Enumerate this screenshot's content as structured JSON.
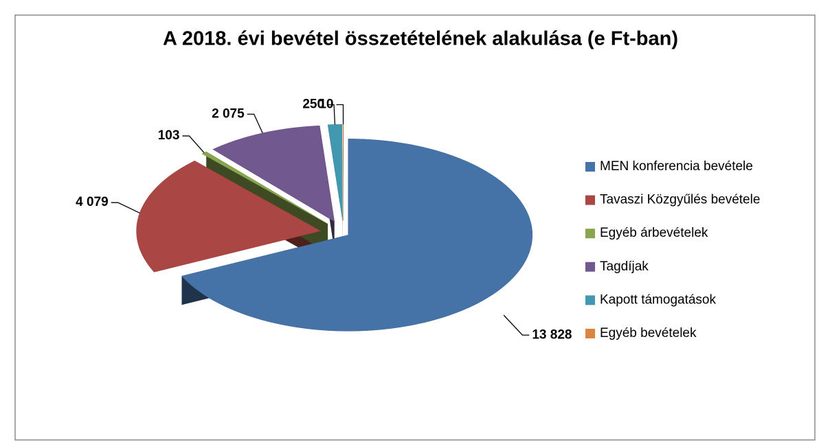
{
  "chart_data": {
    "type": "pie",
    "title": "A 2018. évi bevétel összetételének alakulása (e Ft-ban)",
    "categories": [
      "MEN konferencia bevétele",
      "Tavaszi Közgyűlés bevétele",
      "Egyéb árbevételek",
      "Tagdíjak",
      "Kapott támogatások",
      "Egyéb bevételek"
    ],
    "values": [
      13828,
      4079,
      103,
      2075,
      250,
      10
    ],
    "value_labels": [
      "13 828",
      "4 079",
      "103",
      "2 075",
      "250",
      "10"
    ],
    "colors": [
      "#4572a7",
      "#aa4643",
      "#89a54e",
      "#71588f",
      "#4198af",
      "#db843d"
    ],
    "legend": "right"
  }
}
